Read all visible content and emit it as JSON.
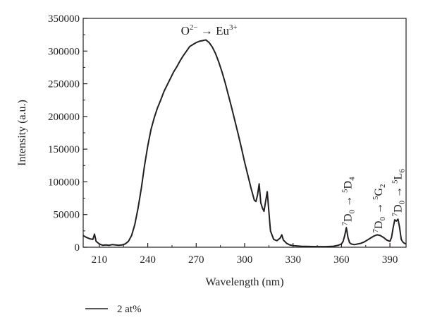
{
  "chart_data": {
    "type": "line",
    "title": "",
    "xlabel": "Wavelength (nm)",
    "ylabel": "Intensity (a.u.)",
    "xlim": [
      200,
      400
    ],
    "ylim": [
      0,
      350000
    ],
    "xticks": [
      "210",
      "240",
      "270",
      "300",
      "330",
      "360",
      "390"
    ],
    "yticks": [
      "0",
      "50000",
      "100000",
      "150000",
      "200000",
      "250000",
      "300000",
      "350000"
    ],
    "grid": false,
    "legend_position": "bottom-left",
    "series": [
      {
        "name": "2 at%",
        "color": "#231f20",
        "x": [
          200,
          202,
          204,
          206,
          207,
          208,
          209,
          210,
          212,
          214,
          216,
          218,
          220,
          222,
          224,
          226,
          228,
          230,
          232,
          234,
          236,
          238,
          240,
          242,
          244,
          246,
          248,
          250,
          252,
          254,
          256,
          258,
          260,
          262,
          264,
          266,
          268,
          270,
          272,
          274,
          276,
          278,
          280,
          282,
          284,
          286,
          288,
          290,
          292,
          294,
          296,
          298,
          300,
          302,
          304,
          306,
          307,
          308,
          309,
          310,
          311,
          312,
          313,
          314,
          315,
          316,
          318,
          320,
          322,
          323,
          324,
          326,
          328,
          330,
          335,
          340,
          345,
          350,
          355,
          358,
          360,
          361,
          362,
          363,
          364,
          365,
          366,
          368,
          370,
          372,
          374,
          376,
          378,
          380,
          382,
          384,
          386,
          388,
          390,
          391,
          392,
          393,
          394,
          395,
          396,
          397,
          398,
          399,
          400
        ],
        "y": [
          18000,
          15000,
          13000,
          12000,
          20000,
          9000,
          7000,
          5000,
          3000,
          3500,
          3000,
          4000,
          3500,
          3000,
          3500,
          5000,
          9000,
          18000,
          35000,
          60000,
          90000,
          125000,
          155000,
          180000,
          198000,
          213000,
          225000,
          238000,
          248000,
          258000,
          268000,
          276000,
          285000,
          293000,
          300000,
          307000,
          310000,
          313000,
          315000,
          316000,
          317000,
          313000,
          306000,
          296000,
          283000,
          268000,
          251000,
          232000,
          213000,
          193000,
          173000,
          152000,
          130000,
          110000,
          90000,
          72000,
          70000,
          80000,
          97000,
          68000,
          60000,
          55000,
          70000,
          85000,
          55000,
          25000,
          12000,
          10000,
          14000,
          19000,
          11000,
          6000,
          3500,
          2500,
          1500,
          1200,
          1000,
          1000,
          1500,
          3000,
          5000,
          9000,
          18000,
          30000,
          15000,
          7000,
          5000,
          4000,
          5000,
          6000,
          8000,
          11000,
          14000,
          17000,
          19000,
          18000,
          15000,
          11000,
          9000,
          15000,
          30000,
          42000,
          40000,
          43000,
          30000,
          12000,
          8000,
          6000,
          5000
        ]
      }
    ],
    "annotations": [
      {
        "text_pre": "O",
        "sup1": "2−",
        "mid": " → Eu",
        "sup2": "3+",
        "x": 278,
        "y": 325000,
        "rotation": 0
      },
      {
        "sup1": "7",
        "base1": "D",
        "sub1": "0",
        "mid": " → ",
        "sup2": "5",
        "base2": "D",
        "sub2": "4",
        "x": 364,
        "y": 33000,
        "rotation": -90
      },
      {
        "sup1": "7",
        "base1": "D",
        "sub1": "0",
        "mid": " → ",
        "sup2": "5",
        "base2": "G",
        "sub2": "2",
        "x": 383,
        "y": 22000,
        "rotation": -90
      },
      {
        "sup1": "7",
        "base1": "D",
        "sub1": "0",
        "mid": " → ",
        "sup2": "5",
        "base2": "L",
        "sub2": "6",
        "x": 395,
        "y": 47000,
        "rotation": -90
      }
    ]
  }
}
